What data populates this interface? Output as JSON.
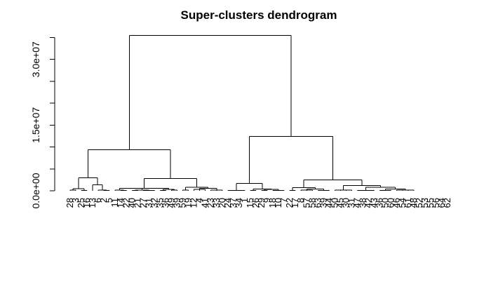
{
  "chart_data": {
    "type": "dendrogram",
    "title": "Super-clusters dendrogram",
    "xlabel": "",
    "ylabel": "",
    "ylim": [
      0,
      37000000
    ],
    "y_ticks": [
      0,
      5000000,
      10000000,
      15000000,
      20000000,
      25000000,
      30000000,
      35000000
    ],
    "y_tick_labels": [
      "0.0e+00",
      "",
      "",
      "1.5e+07",
      "",
      "",
      "3.0e+07",
      ""
    ],
    "leaves": [
      "28",
      "3",
      "25",
      "16",
      "13",
      "6",
      "2",
      "5",
      "11",
      "14",
      "22",
      "40",
      "21",
      "27",
      "31",
      "32",
      "35",
      "36",
      "49",
      "39",
      "59",
      "19",
      "12",
      "4",
      "41",
      "23",
      "33",
      "20",
      "24",
      "37",
      "34",
      "1",
      "15",
      "26",
      "29",
      "9",
      "18",
      "10",
      "7",
      "22",
      "17",
      "8",
      "57",
      "58",
      "63",
      "39",
      "44",
      "50",
      "45",
      "30",
      "31",
      "47",
      "38",
      "42",
      "43",
      "36",
      "50",
      "60",
      "46",
      "54",
      "61",
      "48",
      "52",
      "53",
      "55",
      "56",
      "64",
      "62"
    ],
    "merges": [
      {
        "left": [
          0,
          1
        ],
        "right": [
          1,
          0
        ],
        "height": 300000,
        "children": [
          [
            0,
            0.5
          ],
          [
            1,
            0.5
          ]
        ]
      },
      {
        "x0": 0.5,
        "x1": 2.5,
        "height": 300000
      }
    ],
    "tree": {
      "h": 35500000,
      "c": [
        {
          "h": 9400000,
          "c": [
            {
              "h": 3000000,
              "c": [
                {
                  "h": 500000,
                  "c": [
                    {
                      "h": 200000,
                      "c": [
                        {
                          "l": 0
                        },
                        {
                          "l": 1
                        }
                      ]
                    },
                    {
                      "h": 100000,
                      "c": [
                        {
                          "l": 2
                        },
                        {
                          "l": 3
                        }
                      ]
                    }
                  ]
                },
                {
                  "h": 1400000,
                  "c": [
                    {
                      "h": 0,
                      "c": [
                        {
                          "l": 4
                        }
                      ]
                    },
                    {
                      "h": 200000,
                      "c": [
                        {
                          "l": 5
                        },
                        {
                          "h": 100000,
                          "c": [
                            {
                              "l": 6
                            },
                            {
                              "l": 7
                            }
                          ]
                        }
                      ]
                    }
                  ]
                }
              ]
            },
            {
              "h": 2800000,
              "c": [
                {
                  "h": 600000,
                  "c": [
                    {
                      "h": 200000,
                      "c": [
                        {
                          "l": 8
                        },
                        {
                          "h": 100000,
                          "c": [
                            {
                              "l": 9
                            },
                            {
                              "l": 10
                            }
                          ]
                        }
                      ]
                    },
                    {
                      "h": 200000,
                      "c": [
                        {
                          "h": 100000,
                          "c": [
                            {
                              "l": 11
                            },
                            {
                              "l": 12
                            }
                          ]
                        },
                        {
                          "h": 100000,
                          "c": [
                            {
                              "l": 13
                            },
                            {
                              "l": 14
                            },
                            {
                              "l": 15
                            }
                          ]
                        }
                      ]
                    },
                    {
                      "h": 300000,
                      "c": [
                        {
                          "h": 100000,
                          "c": [
                            {
                              "l": 16
                            },
                            {
                              "l": 17
                            }
                          ]
                        },
                        {
                          "h": 200000,
                          "c": [
                            {
                              "l": 18
                            },
                            {
                              "l": 19
                            }
                          ]
                        }
                      ]
                    }
                  ]
                },
                {
                  "h": 800000,
                  "c": [
                    {
                      "h": 200000,
                      "c": [
                        {
                          "l": 20
                        },
                        {
                          "l": 21
                        }
                      ]
                    },
                    {
                      "h": 600000,
                      "c": [
                        {
                          "h": 300000,
                          "c": [
                            {
                              "l": 22
                            },
                            {
                              "l": 23
                            },
                            {
                              "l": 24
                            }
                          ]
                        },
                        {
                          "h": 200000,
                          "c": [
                            {
                              "l": 25
                            },
                            {
                              "l": 26
                            },
                            {
                              "l": 27
                            }
                          ]
                        }
                      ]
                    }
                  ]
                }
              ]
            }
          ]
        },
        {
          "h": 12400000,
          "c": [
            {
              "h": 1700000,
              "c": [
                {
                  "h": 100000,
                  "c": [
                    {
                      "l": 28
                    },
                    {
                      "l": 29
                    },
                    {
                      "l": 30
                    },
                    {
                      "l": 31
                    }
                  ]
                },
                {
                  "h": 400000,
                  "c": [
                    {
                      "h": 100000,
                      "c": [
                        {
                          "l": 32
                        },
                        {
                          "l": 33
                        }
                      ]
                    },
                    {
                      "h": 300000,
                      "c": [
                        {
                          "h": 100000,
                          "c": [
                            {
                              "l": 34
                            },
                            {
                              "l": 35
                            }
                          ]
                        },
                        {
                          "h": 100000,
                          "c": [
                            {
                              "l": 36
                            },
                            {
                              "l": 37
                            },
                            {
                              "l": 38
                            }
                          ]
                        }
                      ]
                    }
                  ]
                }
              ]
            },
            {
              "h": 2500000,
              "c": [
                {
                  "h": 700000,
                  "c": [
                    {
                      "h": 100000,
                      "c": [
                        {
                          "l": 39
                        },
                        {
                          "l": 40
                        }
                      ]
                    },
                    {
                      "h": 400000,
                      "c": [
                        {
                          "h": 200000,
                          "c": [
                            {
                              "l": 41
                            },
                            {
                              "l": 42
                            },
                            {
                              "l": 43
                            }
                          ]
                        },
                        {
                          "h": 100000,
                          "c": [
                            {
                              "l": 44
                            },
                            {
                              "l": 45
                            },
                            {
                              "l": 46
                            }
                          ]
                        }
                      ]
                    }
                  ]
                },
                {
                  "h": 1200000,
                  "c": [
                    {
                      "h": 200000,
                      "c": [
                        {
                          "l": 47
                        },
                        {
                          "l": 48
                        },
                        {
                          "l": 49
                        },
                        {
                          "l": 50
                        }
                      ]
                    },
                    {
                      "h": 800000,
                      "c": [
                        {
                          "h": 100000,
                          "c": [
                            {
                              "l": 51
                            },
                            {
                              "l": 52
                            },
                            {
                              "l": 53
                            },
                            {
                              "l": 54
                            }
                          ]
                        },
                        {
                          "h": 400000,
                          "c": [
                            {
                              "h": 100000,
                              "c": [
                                {
                                  "l": 55
                                },
                                {
                                  "l": 56
                                },
                                {
                                  "l": 57
                                }
                              ]
                            },
                            {
                              "h": 200000,
                              "c": [
                                {
                                  "l": 58
                                },
                                {
                                  "l": 59
                                },
                                {
                                  "l": 60
                                },
                                {
                                  "l": 61
                                }
                              ]
                            }
                          ]
                        }
                      ]
                    }
                  ]
                }
              ]
            }
          ]
        }
      ]
    }
  }
}
